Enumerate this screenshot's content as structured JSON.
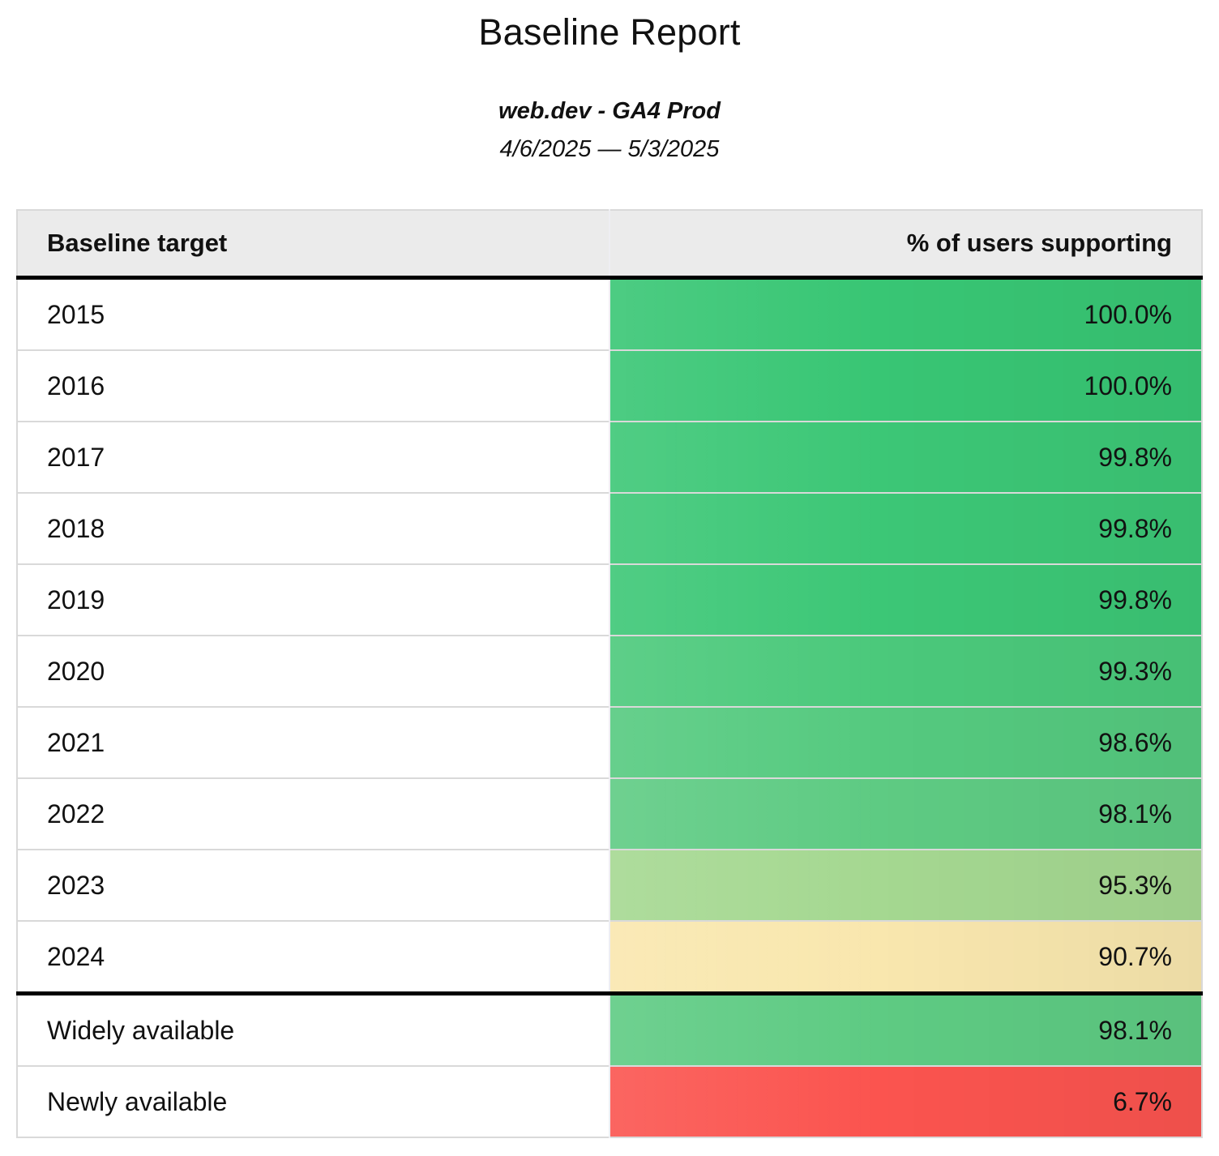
{
  "header": {
    "title": "Baseline Report",
    "subtitle": "web.dev - GA4 Prod",
    "date_range": "4/6/2025 — 5/3/2025"
  },
  "table": {
    "columns": [
      "Baseline target",
      "% of users supporting"
    ],
    "sections": [
      {
        "name": "years",
        "rows": [
          {
            "target": "2015",
            "value": "100.0%",
            "color": "#38c674"
          },
          {
            "target": "2016",
            "value": "100.0%",
            "color": "#38c674"
          },
          {
            "target": "2017",
            "value": "99.8%",
            "color": "#3cc776"
          },
          {
            "target": "2018",
            "value": "99.8%",
            "color": "#3cc776"
          },
          {
            "target": "2019",
            "value": "99.8%",
            "color": "#3cc776"
          },
          {
            "target": "2020",
            "value": "99.3%",
            "color": "#4bc97b"
          },
          {
            "target": "2021",
            "value": "98.6%",
            "color": "#55ca7f"
          },
          {
            "target": "2022",
            "value": "98.1%",
            "color": "#5ecb83"
          },
          {
            "target": "2023",
            "value": "95.3%",
            "color": "#a5d891"
          },
          {
            "target": "2024",
            "value": "90.7%",
            "color": "#f9e7ae"
          }
        ]
      },
      {
        "name": "summary",
        "rows": [
          {
            "target": "Widely available",
            "value": "98.1%",
            "color": "#5ecb83"
          },
          {
            "target": "Newly available",
            "value": "6.7%",
            "color": "#fb544f"
          }
        ]
      }
    ]
  },
  "colors": {
    "header_background": "#ebebeb",
    "row_divider": "#d9d9d9",
    "section_divider": "#000000",
    "scale_high_green": "#38c674",
    "scale_mid_yellow": "#f9e7ae",
    "scale_low_red": "#fb544f"
  }
}
